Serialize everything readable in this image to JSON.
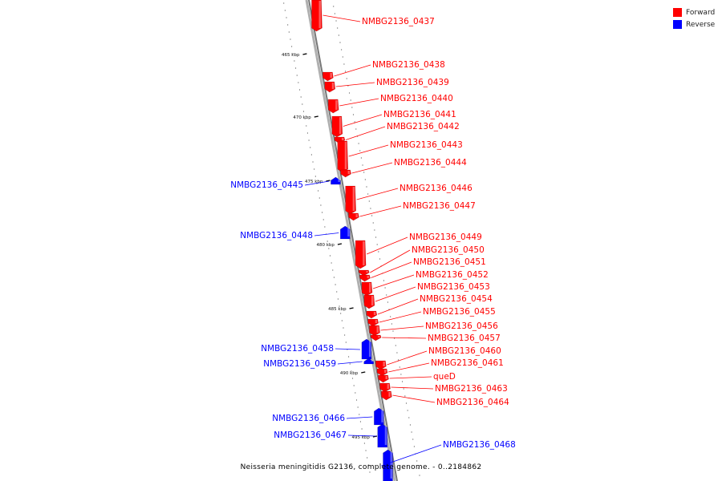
{
  "legend": {
    "items": [
      {
        "label": "Forward",
        "color": "#ff0000"
      },
      {
        "label": "Reverse",
        "color": "#0000ff"
      }
    ]
  },
  "caption": "Neisseria meningitidis G2136, complete genome. - 0..2184862",
  "colors": {
    "forward": "#ff0000",
    "reverse": "#0000ff",
    "backbone": "#888888",
    "tick": "#000000"
  },
  "ticks": [
    "465 kbp",
    "470 kbp",
    "475 kbp",
    "480 kbp",
    "485 kbp",
    "490 kbp",
    "495 kbp"
  ],
  "genes": [
    {
      "name": "NMBG2136_0437",
      "strand": "forward"
    },
    {
      "name": "NMBG2136_0438",
      "strand": "forward"
    },
    {
      "name": "NMBG2136_0439",
      "strand": "forward"
    },
    {
      "name": "NMBG2136_0440",
      "strand": "forward"
    },
    {
      "name": "NMBG2136_0441",
      "strand": "forward"
    },
    {
      "name": "NMBG2136_0442",
      "strand": "forward"
    },
    {
      "name": "NMBG2136_0443",
      "strand": "forward"
    },
    {
      "name": "NMBG2136_0444",
      "strand": "forward"
    },
    {
      "name": "NMBG2136_0445",
      "strand": "reverse"
    },
    {
      "name": "NMBG2136_0446",
      "strand": "forward"
    },
    {
      "name": "NMBG2136_0447",
      "strand": "forward"
    },
    {
      "name": "NMBG2136_0448",
      "strand": "reverse"
    },
    {
      "name": "NMBG2136_0449",
      "strand": "forward"
    },
    {
      "name": "NMBG2136_0450",
      "strand": "forward"
    },
    {
      "name": "NMBG2136_0451",
      "strand": "forward"
    },
    {
      "name": "NMBG2136_0452",
      "strand": "forward"
    },
    {
      "name": "NMBG2136_0453",
      "strand": "forward"
    },
    {
      "name": "NMBG2136_0454",
      "strand": "forward"
    },
    {
      "name": "NMBG2136_0455",
      "strand": "forward"
    },
    {
      "name": "NMBG2136_0456",
      "strand": "forward"
    },
    {
      "name": "NMBG2136_0457",
      "strand": "forward"
    },
    {
      "name": "NMBG2136_0458",
      "strand": "reverse"
    },
    {
      "name": "NMBG2136_0459",
      "strand": "reverse"
    },
    {
      "name": "NMBG2136_0460",
      "strand": "forward"
    },
    {
      "name": "NMBG2136_0461",
      "strand": "forward"
    },
    {
      "name": "queD",
      "strand": "forward"
    },
    {
      "name": "NMBG2136_0463",
      "strand": "forward"
    },
    {
      "name": "NMBG2136_0464",
      "strand": "forward"
    },
    {
      "name": "NMBG2136_0466",
      "strand": "reverse"
    },
    {
      "name": "NMBG2136_0467",
      "strand": "reverse"
    },
    {
      "name": "NMBG2136_0468",
      "strand": "reverse"
    }
  ]
}
